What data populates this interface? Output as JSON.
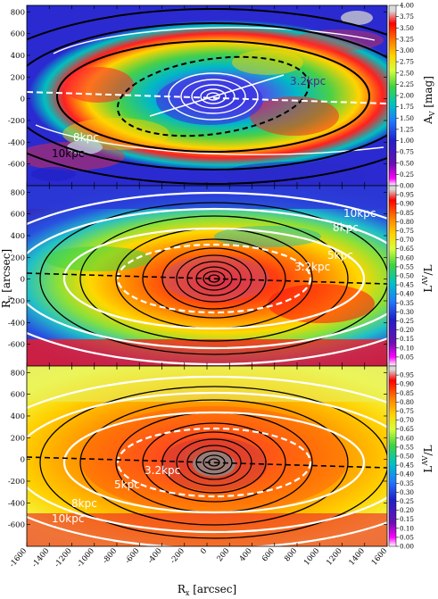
{
  "figure": {
    "xlabel": "R_x [arcsec]",
    "ylabel": "R_y [arcsec]",
    "x_ticks": [
      "-1600",
      "-1400",
      "-1200",
      "-1000",
      "-800",
      "-600",
      "-400",
      "-200",
      "0",
      "200",
      "400",
      "600",
      "800",
      "1000",
      "1200",
      "1400",
      "1600"
    ],
    "y_ticks_top": [
      "800",
      "600",
      "400",
      "200",
      "0",
      "-200",
      "-400",
      "-600"
    ],
    "y_ticks": [
      "800",
      "600",
      "400",
      "200",
      "0",
      "-200",
      "-400",
      "-600"
    ]
  },
  "chart_data": [
    {
      "type": "heatmap",
      "panel": "top",
      "xlim": [
        -1600,
        1600
      ],
      "ylim": [
        -800,
        860
      ],
      "colorbar_label": "A_V [mag]",
      "colorbar_range": [
        0,
        4.0
      ],
      "colorbar_ticks": [
        "4.00",
        "3.75",
        "3.50",
        "3.25",
        "3.00",
        "2.75",
        "2.50",
        "2.25",
        "2.00",
        "1.75",
        "1.50",
        "1.25",
        "1.00",
        "0.75",
        "0.50",
        "0.25",
        "0.00"
      ],
      "ring_labels": [
        "3.2kpc",
        "8kpc",
        "10kpc"
      ],
      "contours": "white",
      "ellipses": "black"
    },
    {
      "type": "heatmap",
      "panel": "middle",
      "xlim": [
        -1600,
        1600
      ],
      "ylim": [
        -800,
        860
      ],
      "colorbar_label": "L^AV / L",
      "colorbar_range": [
        0,
        1.0
      ],
      "colorbar_ticks": [
        "0.95",
        "0.90",
        "0.85",
        "0.80",
        "0.75",
        "0.70",
        "0.65",
        "0.60",
        "0.55",
        "0.50",
        "0.45",
        "0.40",
        "0.35",
        "0.30",
        "0.25",
        "0.20",
        "0.15",
        "0.10",
        "0.05"
      ],
      "ring_labels": [
        "10kpc",
        "8kpc",
        "5kpc",
        "3.2kpc"
      ],
      "contours": "black",
      "ellipses": "white"
    },
    {
      "type": "heatmap",
      "panel": "bottom",
      "xlim": [
        -1600,
        1600
      ],
      "ylim": [
        -800,
        860
      ],
      "colorbar_label": "L^AV / L",
      "colorbar_range": [
        0,
        1.0
      ],
      "colorbar_ticks": [
        "0.95",
        "0.90",
        "0.85",
        "0.80",
        "0.75",
        "0.70",
        "0.65",
        "0.60",
        "0.55",
        "0.50",
        "0.45",
        "0.40",
        "0.35",
        "0.30",
        "0.25",
        "0.20",
        "0.15",
        "0.10",
        "0.05",
        "0.00"
      ],
      "ring_labels": [
        "3.2kpc",
        "5kpc",
        "8kpc",
        "10kpc"
      ],
      "contours": "black",
      "ellipses": "white"
    }
  ],
  "colors": {
    "colormap": [
      "#d9d9d9",
      "#ff0000",
      "#ff7f00",
      "#ffd400",
      "#d7ff3b",
      "#3fd33f",
      "#00c2c2",
      "#1f7bff",
      "#2020c8",
      "#6a0fb0",
      "#ff00ff"
    ]
  }
}
